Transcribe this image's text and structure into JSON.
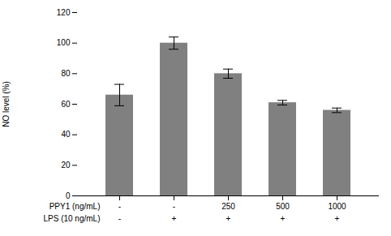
{
  "chart_data": {
    "type": "bar",
    "categories": [
      "-",
      "-",
      "250",
      "500",
      "1000"
    ],
    "xlabel": "PPY1 (ng/mL)",
    "annotations": [
      {
        "text": "LPS (10 ng/mL)",
        "labels": [
          "-",
          "+",
          "+",
          "+",
          "+"
        ]
      }
    ],
    "values": [
      66,
      100,
      80,
      61,
      56
    ],
    "errors": [
      7,
      4,
      3,
      1.5,
      1.5
    ],
    "ylabel": "NO level (%)",
    "ylim": [
      0,
      120
    ],
    "yticks": [
      0,
      20,
      40,
      60,
      80,
      100,
      120
    ],
    "color": "#808080",
    "grid": false
  }
}
